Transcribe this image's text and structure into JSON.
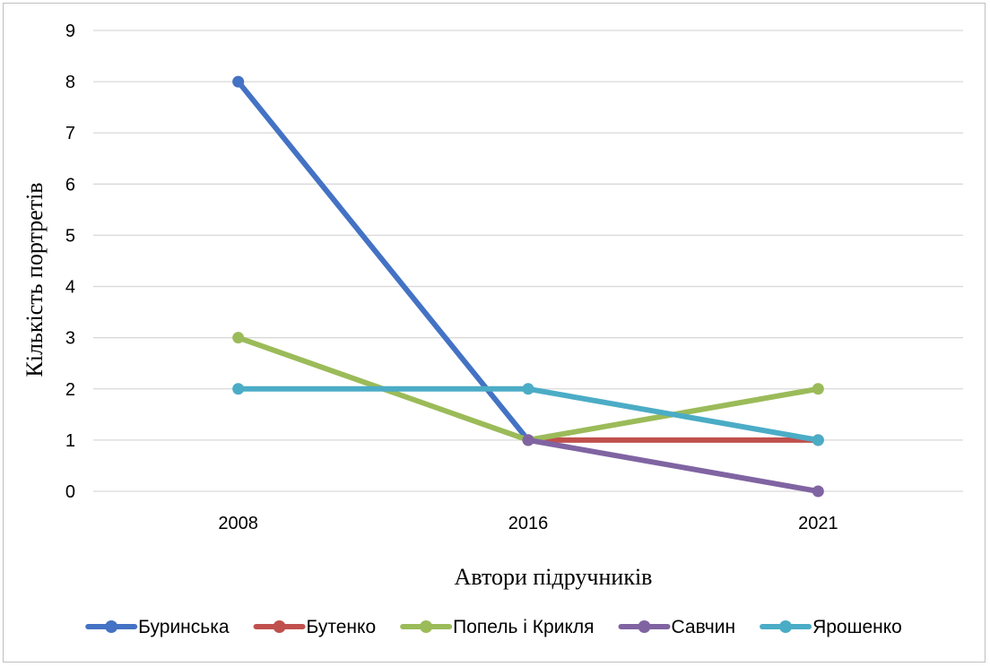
{
  "chart_data": {
    "type": "line",
    "title": "",
    "xlabel": "Автори підручників",
    "ylabel": "Кількість портретів",
    "categories": [
      "2008",
      "2016",
      "2021"
    ],
    "ylim": [
      0,
      9
    ],
    "yticks": [
      "0",
      "1",
      "2",
      "3",
      "4",
      "5",
      "6",
      "7",
      "8",
      "9"
    ],
    "grid": true,
    "legend_position": "bottom",
    "series": [
      {
        "name": "Буринська",
        "color": "#4472C4",
        "values": [
          8,
          1,
          null
        ]
      },
      {
        "name": "Бутенко",
        "color": "#C0504D",
        "values": [
          null,
          1,
          1
        ]
      },
      {
        "name": "Попель і Крикля",
        "color": "#9BBB59",
        "values": [
          3,
          1,
          2
        ]
      },
      {
        "name": "Савчин",
        "color": "#8064A2",
        "values": [
          null,
          1,
          0
        ]
      },
      {
        "name": "Ярошенко",
        "color": "#4BACC6",
        "values": [
          2,
          2,
          1
        ]
      }
    ]
  }
}
